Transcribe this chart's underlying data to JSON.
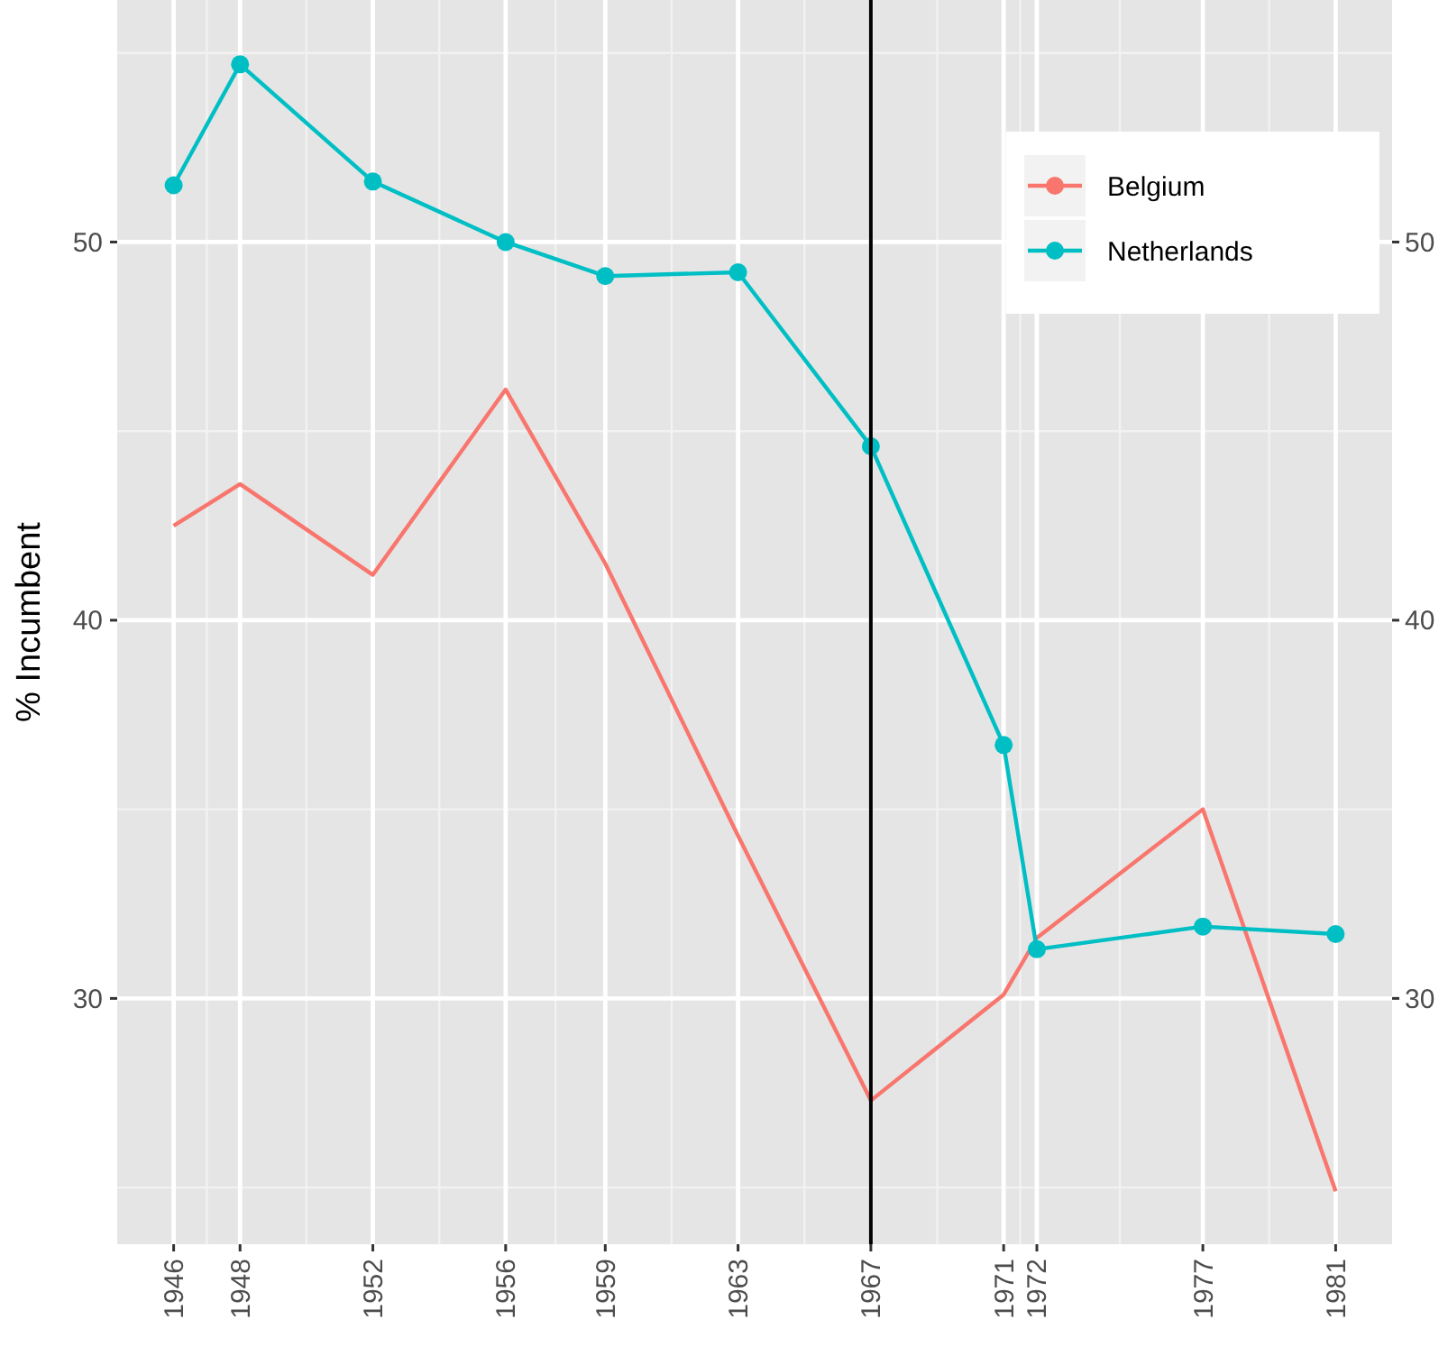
{
  "chart_data": {
    "type": "line",
    "ylabel": "% Incumbent",
    "x": [
      1946,
      1948,
      1952,
      1956,
      1959,
      1963,
      1967,
      1971,
      1972,
      1977,
      1981
    ],
    "series": [
      {
        "name": "Belgium",
        "color": "#f8766d",
        "marker": "none",
        "values": [
          42.5,
          43.6,
          41.2,
          46.1,
          41.5,
          34.3,
          27.3,
          30.1,
          31.6,
          35.0,
          24.9
        ]
      },
      {
        "name": "Netherlands",
        "color": "#00bfc4",
        "marker": "circle",
        "values": [
          51.5,
          54.7,
          51.6,
          50.0,
          49.1,
          49.2,
          44.6,
          36.7,
          31.3,
          31.9,
          31.7
        ]
      }
    ],
    "xlim": [
      1944.3,
      1982.7
    ],
    "xticks": [
      1946,
      1948,
      1952,
      1956,
      1959,
      1963,
      1967,
      1971,
      1972,
      1977,
      1981
    ],
    "ylim": [
      23.5,
      56.4
    ],
    "yticks": [
      30,
      40,
      50
    ],
    "y2lim": [
      23.5,
      56.4
    ],
    "y2ticks": [
      30,
      40,
      50
    ],
    "ref_lines": [
      {
        "axis": "x",
        "value": 1967,
        "label": null,
        "color": "#000000"
      }
    ],
    "grid": true,
    "legend": "top right",
    "line_style": "solid"
  }
}
